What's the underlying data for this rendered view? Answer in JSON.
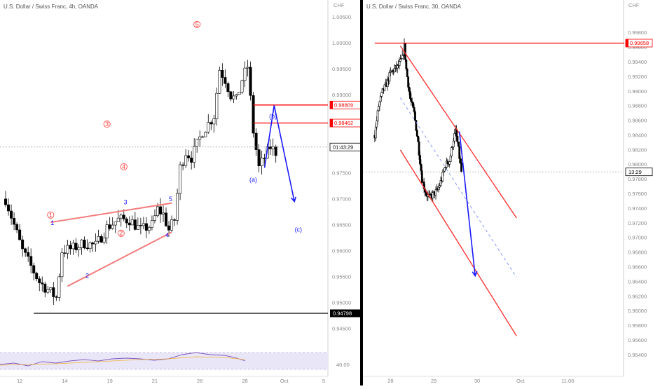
{
  "charts": [
    {
      "title": "U.S. Dollar / Swiss Franc, 4h, OANDA",
      "currency": "CHF",
      "ylim": [
        0.9415,
        1.0075
      ],
      "yticks": [
        "1.00500",
        "1.00000",
        "0.99500",
        "0.99000",
        "0.98500",
        "0.98000",
        "0.97500",
        "0.97000",
        "0.96500",
        "0.96000",
        "0.95500",
        "0.95000",
        "0.94500"
      ],
      "xtime_range": [
        0,
        48
      ],
      "xticks": [
        {
          "t": 2.5,
          "label": "12"
        },
        {
          "t": 10.5,
          "label": "14"
        },
        {
          "t": 18.5,
          "label": "19"
        },
        {
          "t": 26.5,
          "label": "21"
        },
        {
          "t": 34.5,
          "label": "26"
        },
        {
          "t": 42.5,
          "label": "28"
        },
        {
          "t": 49.5,
          "label": "Oct"
        },
        {
          "t": 56.5,
          "label": "5"
        }
      ],
      "price_tags": [
        {
          "value": 0.98809,
          "label": "0.98809",
          "kind": "level"
        },
        {
          "value": 0.98462,
          "label": "0.98462",
          "kind": "level"
        },
        {
          "value": 0.98,
          "label": "01:43:29",
          "kind": "current"
        },
        {
          "value": 0.94798,
          "label": "0.94798",
          "kind": "support"
        }
      ],
      "hlines": [
        {
          "value": 0.98809,
          "from_t": 44,
          "color": "#ff0000"
        },
        {
          "value": 0.98462,
          "from_t": 44,
          "color": "#ff0000"
        },
        {
          "value": 0.94798,
          "from_t": 5,
          "color": "#000000"
        }
      ],
      "wave_labels": [
        {
          "text": "1",
          "t": 8,
          "y": 0.9665,
          "color": "#ff3333",
          "circle": true
        },
        {
          "text": "2",
          "t": 20.5,
          "y": 0.963,
          "color": "#ff3333",
          "circle": true
        },
        {
          "text": "3",
          "t": 18,
          "y": 0.984,
          "color": "#ff3333",
          "circle": true
        },
        {
          "text": "4",
          "t": 21,
          "y": 0.9758,
          "color": "#ff3333",
          "circle": true
        },
        {
          "text": "5",
          "t": 34,
          "y": 1.0032,
          "color": "#ff3333",
          "circle": true
        },
        {
          "text": "(b)",
          "t": 47.5,
          "y": 0.9855,
          "color": "#1a1aff",
          "circle": false
        },
        {
          "text": "(a)",
          "t": 44,
          "y": 0.9733,
          "color": "#1a1aff",
          "circle": false
        },
        {
          "text": "(c)",
          "t": 52,
          "y": 0.9637,
          "color": "#1a1aff",
          "circle": false
        },
        {
          "text": "1",
          "t": 8.3,
          "y": 0.965,
          "color": "#1a1aff",
          "circle": false
        },
        {
          "text": "2",
          "t": 14.5,
          "y": 0.9548,
          "color": "#1a1aff",
          "circle": false
        },
        {
          "text": "3",
          "t": 21.3,
          "y": 0.969,
          "color": "#1a1aff",
          "circle": false
        },
        {
          "text": "4",
          "t": 28.7,
          "y": 0.9626,
          "color": "#1a1aff",
          "circle": false
        },
        {
          "text": "5",
          "t": 29.3,
          "y": 0.9696,
          "color": "#1a1aff",
          "circle": false
        }
      ],
      "indicator": {
        "label": "40.00"
      }
    },
    {
      "title": "U.S. Dollar / Swiss Franc, 30, OANDA",
      "currency": "CHF",
      "ylim": [
        0.9527,
        1.0017
      ],
      "yticks": [
        "0.99800",
        "0.99600",
        "0.99400",
        "0.99200",
        "0.99000",
        "0.98800",
        "0.98600",
        "0.98400",
        "0.98200",
        "0.98000",
        "0.97800",
        "0.97600",
        "0.97400",
        "0.97200",
        "0.97000",
        "0.96800",
        "0.96600",
        "0.96400",
        "0.96200",
        "0.96000",
        "0.95800",
        "0.95600",
        "0.95400"
      ],
      "xtime_range": [
        0,
        63
      ],
      "xticks": [
        {
          "t": 4,
          "label": "28"
        },
        {
          "t": 15,
          "label": "29"
        },
        {
          "t": 26,
          "label": "30"
        },
        {
          "t": 37,
          "label": "Oct"
        },
        {
          "t": 49,
          "label": "11:00"
        }
      ],
      "price_tags": [
        {
          "value": 0.99658,
          "label": "0.99658",
          "kind": "level"
        },
        {
          "value": 0.979,
          "label": "13:29",
          "kind": "current"
        }
      ],
      "hlines": [
        {
          "value": 0.99658,
          "from_t": 0,
          "color": "#ff0000"
        }
      ]
    }
  ],
  "chart_data": [
    {
      "type": "candlestick",
      "title": "U.S. Dollar / Swiss Franc, 4h, OANDA",
      "ylabel": "CHF",
      "x": [
        "12",
        "14",
        "19",
        "21",
        "26",
        "28",
        "Oct",
        "5"
      ],
      "close_path": [
        [
          0,
          0.97
        ],
        [
          3,
          0.96
        ],
        [
          6,
          0.954
        ],
        [
          8,
          0.952
        ],
        [
          9,
          0.951
        ],
        [
          10,
          0.96
        ],
        [
          12,
          0.9605
        ],
        [
          14,
          0.9615
        ],
        [
          16,
          0.961
        ],
        [
          18,
          0.9645
        ],
        [
          20,
          0.966
        ],
        [
          22,
          0.966
        ],
        [
          24,
          0.964
        ],
        [
          26,
          0.965
        ],
        [
          27,
          0.968
        ],
        [
          28,
          0.967
        ],
        [
          29,
          0.964
        ],
        [
          30,
          0.966
        ],
        [
          31,
          0.976
        ],
        [
          32,
          0.979
        ],
        [
          33,
          0.978
        ],
        [
          35,
          0.983
        ],
        [
          37,
          0.986
        ],
        [
          38,
          0.995
        ],
        [
          39,
          0.993
        ],
        [
          40,
          0.99
        ],
        [
          41,
          0.989
        ],
        [
          42,
          0.993
        ],
        [
          43,
          0.9955
        ],
        [
          44,
          0.983
        ],
        [
          45,
          0.976
        ],
        [
          46,
          0.978
        ],
        [
          47,
          0.98
        ],
        [
          48,
          0.979
        ]
      ],
      "levels": [
        0.98809,
        0.98462,
        0.94798
      ],
      "current_price": 0.98,
      "projection": [
        [
          46,
          0.976
        ],
        [
          47.7,
          0.988
        ],
        [
          51.3,
          0.9695
        ]
      ],
      "channel": {
        "upper": [
          [
            8,
            0.9655
          ],
          [
            29.5,
            0.9692
          ]
        ],
        "lower": [
          [
            11,
            0.9532
          ],
          [
            29.5,
            0.9636
          ]
        ]
      },
      "indicator_level": 40.0
    },
    {
      "type": "candlestick",
      "title": "U.S. Dollar / Swiss Franc, 30, OANDA",
      "ylabel": "CHF",
      "x": [
        "28",
        "29",
        "30",
        "Oct",
        "11:00"
      ],
      "close_path": [
        [
          0,
          0.984
        ],
        [
          1,
          0.988
        ],
        [
          2,
          0.99
        ],
        [
          3,
          0.991
        ],
        [
          4,
          0.9925
        ],
        [
          5,
          0.993
        ],
        [
          6,
          0.9935
        ],
        [
          7,
          0.9945
        ],
        [
          7.5,
          0.9962
        ],
        [
          8,
          0.993
        ],
        [
          9,
          0.989
        ],
        [
          10,
          0.987
        ],
        [
          11,
          0.983
        ],
        [
          12,
          0.978
        ],
        [
          13,
          0.976
        ],
        [
          14,
          0.9755
        ],
        [
          15,
          0.976
        ],
        [
          16,
          0.9765
        ],
        [
          17,
          0.978
        ],
        [
          18,
          0.98
        ],
        [
          19,
          0.9805
        ],
        [
          20,
          0.9835
        ],
        [
          20.5,
          0.9845
        ],
        [
          21,
          0.983
        ],
        [
          21.5,
          0.981
        ],
        [
          22,
          0.979
        ]
      ],
      "levels": [
        0.99658
      ],
      "current_price": 0.979,
      "channel": {
        "upper": [
          [
            6.5,
            0.9962
          ],
          [
            36,
            0.9727
          ]
        ],
        "lower": [
          [
            6.5,
            0.982
          ],
          [
            36,
            0.9566
          ]
        ],
        "mid": [
          [
            6.5,
            0.9891
          ],
          [
            36,
            0.9646
          ]
        ]
      },
      "projection": [
        [
          21.5,
          0.9845
        ],
        [
          25.5,
          0.9648
        ]
      ]
    }
  ]
}
